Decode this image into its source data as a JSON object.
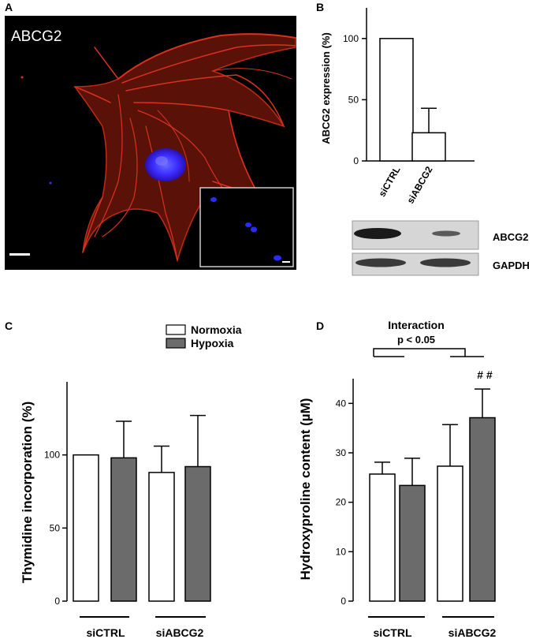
{
  "panels": {
    "A": {
      "letter": "A",
      "stain_label": "ABCG2",
      "colors": {
        "background": "#000000",
        "stain": "#d8321e",
        "nucleus": "#3a2cff",
        "label": "#ffffff"
      }
    },
    "B": {
      "letter": "B",
      "blot": {
        "rows": [
          "ABCG2",
          "GAPDH"
        ]
      }
    },
    "C": {
      "letter": "C"
    },
    "D": {
      "letter": "D",
      "interaction_line1": "Interaction",
      "interaction_line2": "p < 0.05",
      "significance": "# #"
    }
  },
  "chart_data": [
    {
      "id": "B",
      "type": "bar",
      "categories": [
        "siCTRL",
        "siABCG2"
      ],
      "values": [
        100,
        23
      ],
      "errors": [
        0,
        20
      ],
      "ylabel": "ABCG2 expression (%)",
      "ylim": [
        0,
        125
      ],
      "yticks": [
        0,
        50,
        100
      ]
    },
    {
      "id": "C",
      "type": "bar",
      "groups": [
        "siCTRL",
        "siABCG2"
      ],
      "series": [
        {
          "name": "Normoxia",
          "color": "#ffffff",
          "values": [
            100,
            88
          ],
          "errors": [
            0,
            18
          ]
        },
        {
          "name": "Hypoxia",
          "color": "#6b6b6b",
          "values": [
            98,
            92
          ],
          "errors": [
            25,
            35
          ]
        }
      ],
      "ylabel": "Thymidine incorporation (%)",
      "ylim": [
        0,
        150
      ],
      "yticks": [
        0,
        50,
        100
      ],
      "legend": "top-right"
    },
    {
      "id": "D",
      "type": "bar",
      "groups": [
        "siCTRL",
        "siABCG2"
      ],
      "series": [
        {
          "name": "Normoxia",
          "color": "#ffffff",
          "values": [
            25.7,
            27.3
          ],
          "errors": [
            2.4,
            8.4
          ]
        },
        {
          "name": "Hypoxia",
          "color": "#6b6b6b",
          "values": [
            23.4,
            37.1
          ],
          "errors": [
            5.5,
            5.8
          ]
        }
      ],
      "ylabel": "Hydroxyproline content (µM)",
      "ylim": [
        0,
        45
      ],
      "yticks": [
        0,
        10,
        20,
        30,
        40
      ]
    }
  ]
}
